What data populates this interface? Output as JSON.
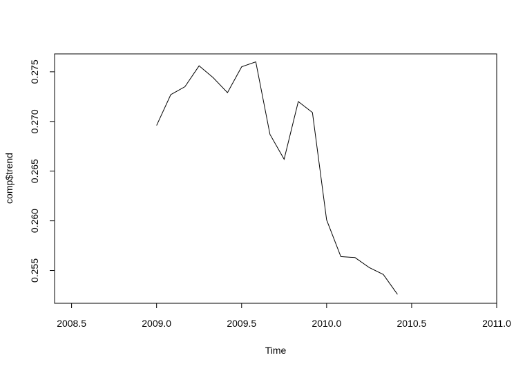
{
  "chart_data": {
    "type": "line",
    "title": "",
    "xlabel": "Time",
    "ylabel": "comp$trend",
    "xlim": [
      2008.4,
      2011.0
    ],
    "ylim": [
      0.2517,
      0.2768
    ],
    "x_ticks": [
      "2008.5",
      "2009.0",
      "2009.5",
      "2010.0",
      "2010.5",
      "2011.0"
    ],
    "y_ticks": [
      "0.255",
      "0.260",
      "0.265",
      "0.270",
      "0.275"
    ],
    "grid": false,
    "legend": "none",
    "line_color": "#000000",
    "series": [
      {
        "x": [
          2009.0,
          2009.0833,
          2009.1667,
          2009.25,
          2009.3333,
          2009.4167,
          2009.5,
          2009.5833,
          2009.6667,
          2009.75,
          2009.8333,
          2009.9167,
          2010.0,
          2010.0833,
          2010.1667,
          2010.25,
          2010.3333,
          2010.4167
        ],
        "values": [
          0.2696,
          0.2727,
          0.2735,
          0.2756,
          0.2744,
          0.2729,
          0.2755,
          0.276,
          0.2687,
          0.2662,
          0.272,
          0.2709,
          0.2601,
          0.2564,
          0.2563,
          0.2553,
          0.2546,
          0.2526
        ]
      }
    ]
  }
}
